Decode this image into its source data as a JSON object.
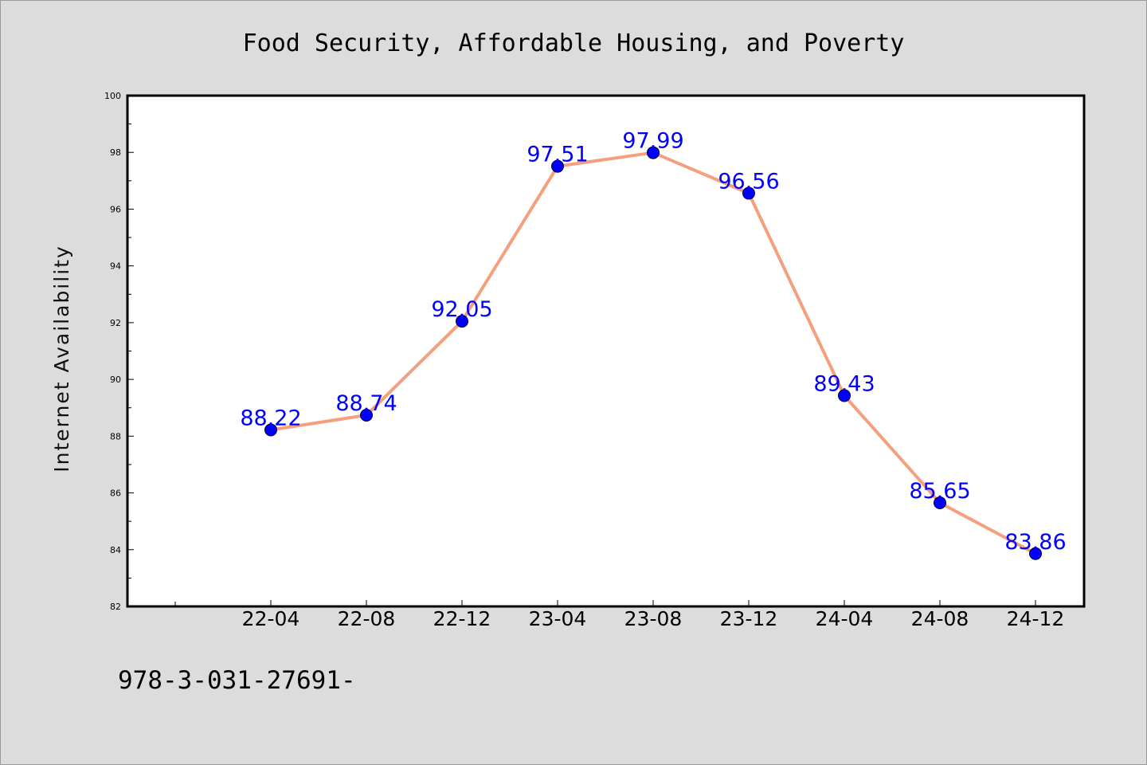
{
  "chart_data": {
    "type": "line",
    "title": "Food Security, Affordable Housing, and Poverty",
    "xlabel": "",
    "ylabel": "Internet Availability",
    "categories": [
      "22-04",
      "22-08",
      "22-12",
      "23-04",
      "23-08",
      "23-12",
      "24-04",
      "24-08",
      "24-12"
    ],
    "values": [
      88.22,
      88.74,
      92.05,
      97.51,
      97.99,
      96.56,
      89.43,
      85.65,
      83.86
    ],
    "data_labels": [
      "88.22",
      "88.74",
      "92.05",
      "97.51",
      "97.99",
      "96.56",
      "89.43",
      "85.65",
      "83.86"
    ],
    "ylim": [
      82,
      100
    ],
    "yticks": [
      "82",
      "84",
      "86",
      "88",
      "90",
      "92",
      "94",
      "96",
      "98",
      "100"
    ],
    "grid": false,
    "line_color": "#f4a07e",
    "marker_color": "#0000ff",
    "label_color": "#0000ff"
  },
  "footer_text": "978-3-031-27691-"
}
